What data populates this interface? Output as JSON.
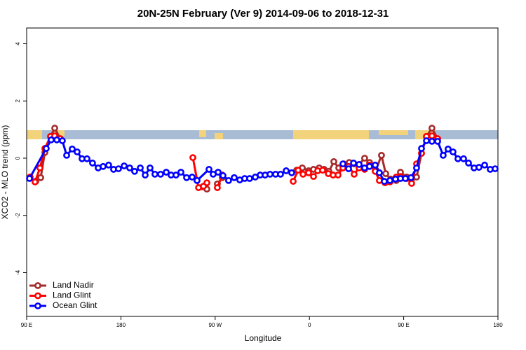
{
  "chart_data": {
    "type": "line",
    "title": "20N-25N February (Ver 9)   2014-09-06 to 2018-12-31",
    "xlabel": "Longitude",
    "ylabel": "XCO2 - MLO trend (ppm)",
    "xlim": [
      90,
      540
    ],
    "xticks": [
      {
        "value": 90,
        "label": "90 E"
      },
      {
        "value": 180,
        "label": "180"
      },
      {
        "value": 270,
        "label": "90 W"
      },
      {
        "value": 360,
        "label": "0"
      },
      {
        "value": 450,
        "label": "90 E"
      },
      {
        "value": 540,
        "label": "180"
      }
    ],
    "ylim": [
      -5.53,
      4.55
    ],
    "yticks": [
      -4,
      -2,
      0,
      2,
      4
    ],
    "grid": false,
    "legend": "bottom-left",
    "series": [
      {
        "name": "Land Nadir",
        "color": "#a52a2a",
        "x": [
          93.3,
          98.7,
          103.4,
          107.4,
          112.8,
          116.8,
          122.1,
          200,
          258.1,
          262.1,
          265,
          272.1,
          276.8,
          380,
          347.8,
          353.2,
          359.2,
          363.9,
          369.3,
          374.0,
          378.6,
          383.3,
          388.0,
          392.7,
          398.0,
          402.7,
          407.4,
          412.7,
          417.4,
          423.5,
          428.8,
          432.9,
          437.5,
          442.9,
          446.9,
          452.9,
          457.6,
          462.3,
          467.0,
          471.7,
          477.0,
          482.4
        ],
        "values": [
          -0.66,
          -0.81,
          -0.68,
          0.2,
          0.76,
          1.05,
          0.68,
          null,
          -1.0,
          -1.08,
          null,
          -0.9,
          -0.68,
          null,
          -0.42,
          -0.34,
          -0.44,
          -0.39,
          -0.34,
          -0.39,
          -0.46,
          -0.12,
          -0.34,
          -0.2,
          -0.15,
          -0.2,
          -0.22,
          0,
          -0.15,
          -0.42,
          0.1,
          -0.54,
          -0.73,
          -0.78,
          -0.49,
          -0.66,
          -0.73,
          -0.66,
          0.17,
          0.76,
          1.05,
          0.68
        ]
      },
      {
        "name": "Land Glint",
        "color": "#ff0000",
        "x": [
          93.3,
          98.0,
          102.7,
          107.4,
          112.8,
          116.8,
          122.1,
          200,
          248.7,
          254.1,
          258.8,
          262.1,
          265,
          272.1,
          276.8,
          380,
          344.5,
          349.2,
          353.9,
          359.2,
          363.9,
          367.9,
          372.6,
          378.0,
          382.6,
          387.3,
          392.0,
          397.4,
          402.7,
          407.4,
          412.7,
          417.4,
          422.8,
          426.8,
          432.2,
          436.9,
          442.9,
          446.9,
          452.9,
          457.6,
          462.3,
          467.0,
          471.7,
          477.0,
          482.4
        ],
        "values": [
          -0.66,
          -0.83,
          -0.34,
          0.34,
          0.76,
          0.78,
          0.68,
          null,
          0.02,
          -1.03,
          -0.98,
          -0.86,
          null,
          -1.03,
          -0.59,
          null,
          -0.81,
          -0.42,
          -0.56,
          -0.51,
          -0.64,
          -0.44,
          -0.42,
          -0.54,
          -0.59,
          -0.59,
          -0.34,
          -0.29,
          -0.56,
          -0.34,
          -0.39,
          -0.24,
          -0.46,
          -0.78,
          -0.86,
          -0.83,
          -0.66,
          -0.64,
          -0.71,
          -0.88,
          -0.2,
          0.17,
          0.76,
          0.78,
          0.68
        ]
      },
      {
        "name": "Ocean Glint",
        "color": "#0000ff",
        "x": [
          92.7,
          108.7,
          113.4,
          118.8,
          124.1,
          128.2,
          133.5,
          138.2,
          142.9,
          147.6,
          152.9,
          158.3,
          163.0,
          168.3,
          173.0,
          177.7,
          183.1,
          188.4,
          193.1,
          198.5,
          203.2,
          207.8,
          212.5,
          217.9,
          223.3,
          227.9,
          232.6,
          237.3,
          242.7,
          248.0,
          252.7,
          264.1,
          268.1,
          272.8,
          277.5,
          282.8,
          288.2,
          293.5,
          298.2,
          302.9,
          308.3,
          313.0,
          317.7,
          322.4,
          327.7,
          332.4,
          337.8,
          343.1,
          370,
          392.0,
          397.4,
          402.1,
          407.4,
          412.7,
          417.4,
          422.8,
          426.8,
          431.5,
          436.9,
          442.2,
          446.9,
          451.6,
          457.0,
          462.3,
          467.0,
          471.7,
          477.0,
          482.4,
          487.7,
          492.4,
          497.1,
          501.8,
          507.2,
          511.9,
          517.2,
          521.9,
          527.3,
          532.6,
          537.3
        ],
        "values": [
          -0.71,
          0.34,
          0.64,
          0.64,
          0.61,
          0.1,
          0.32,
          0.22,
          -0.02,
          -0.02,
          -0.17,
          -0.34,
          -0.29,
          -0.24,
          -0.39,
          -0.37,
          -0.27,
          -0.34,
          -0.46,
          -0.34,
          -0.59,
          -0.34,
          -0.56,
          -0.56,
          -0.49,
          -0.59,
          -0.59,
          -0.49,
          -0.68,
          -0.66,
          -0.78,
          -0.39,
          -0.56,
          -0.49,
          -0.61,
          -0.78,
          -0.68,
          -0.76,
          -0.71,
          -0.71,
          -0.66,
          -0.59,
          -0.59,
          -0.56,
          -0.56,
          -0.56,
          -0.44,
          -0.51,
          null,
          -0.2,
          -0.37,
          -0.17,
          -0.22,
          -0.34,
          -0.29,
          -0.24,
          -0.51,
          -0.81,
          -0.78,
          -0.73,
          -0.71,
          -0.71,
          -0.68,
          -0.34,
          0.34,
          0.61,
          0.59,
          0.59,
          0.1,
          0.32,
          0.22,
          -0.02,
          -0.02,
          -0.17,
          -0.34,
          -0.32,
          -0.24,
          -0.39,
          -0.37
        ]
      }
    ]
  }
}
